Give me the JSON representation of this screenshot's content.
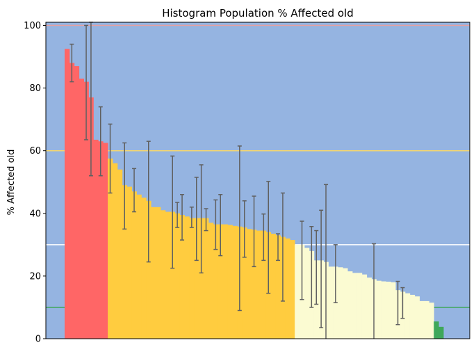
{
  "chart_data": {
    "type": "bar",
    "title": "Histogram Population % Affected old",
    "xlabel": "",
    "ylabel": "% Affected old",
    "ylim": [
      0,
      101
    ],
    "yticks": [
      "0",
      "20",
      "40",
      "60",
      "80",
      "100"
    ],
    "grid": false,
    "background_color": "#95b4e1",
    "thresholds": [
      {
        "value": 100,
        "color": "#e8a0a0"
      },
      {
        "value": 60,
        "color": "#f5d76e"
      },
      {
        "value": 30,
        "color": "#ffffff"
      },
      {
        "value": 10,
        "color": "#3fa75a"
      }
    ],
    "bins": [
      {
        "color": "#ff6666",
        "values": [
          92.5,
          88,
          87,
          83,
          82,
          77,
          63.5,
          63,
          62.5
        ]
      },
      {
        "color": "#ffcc3f",
        "values": [
          57.5,
          56,
          54,
          49,
          48.5,
          47,
          46,
          45,
          44,
          42,
          42,
          41,
          40.5,
          40.5,
          40,
          39.5,
          39,
          38.5,
          38.5,
          38.5,
          38.5,
          37,
          36.5,
          36.5,
          36.5,
          36.3,
          36,
          35.8,
          35.5,
          35,
          34.8,
          34.5,
          34.5,
          34,
          33.5,
          33,
          32.5,
          32,
          31.5
        ]
      },
      {
        "color": "#fbfbd2",
        "values": [
          30,
          30,
          29,
          28,
          25,
          25,
          24.5,
          23,
          23,
          22.8,
          22.5,
          21.5,
          21,
          21,
          20.5,
          19.5,
          19,
          18.5,
          18.3,
          18.2,
          18,
          15.5,
          15,
          14.5,
          14,
          13.5,
          12,
          12,
          11.5
        ]
      },
      {
        "color": "#3fa75a",
        "values": [
          5.5,
          3.8
        ]
      }
    ],
    "error_bars": [
      {
        "index": 1,
        "low": 82,
        "high": 94
      },
      {
        "index": 4,
        "low": 63.5,
        "high": 100
      },
      {
        "index": 5,
        "low": 52,
        "high": 101
      },
      {
        "index": 7,
        "low": 52,
        "high": 74
      },
      {
        "index": 9,
        "low": 46.5,
        "high": 68.5
      },
      {
        "index": 12,
        "low": 35,
        "high": 62.5
      },
      {
        "index": 14,
        "low": 40.5,
        "high": 54.3
      },
      {
        "index": 17,
        "low": 24.5,
        "high": 63
      },
      {
        "index": 22,
        "low": 22.5,
        "high": 58.3
      },
      {
        "index": 23,
        "low": 35.5,
        "high": 43.5
      },
      {
        "index": 24,
        "low": 31.5,
        "high": 46
      },
      {
        "index": 26,
        "low": 35.5,
        "high": 42
      },
      {
        "index": 27,
        "low": 25,
        "high": 51.5
      },
      {
        "index": 28,
        "low": 21,
        "high": 55.5
      },
      {
        "index": 29,
        "low": 34.5,
        "high": 41.5
      },
      {
        "index": 31,
        "low": 28.5,
        "high": 44.3
      },
      {
        "index": 32,
        "low": 26.5,
        "high": 46
      },
      {
        "index": 36,
        "low": 9,
        "high": 61.5
      },
      {
        "index": 37,
        "low": 26,
        "high": 44
      },
      {
        "index": 39,
        "low": 23,
        "high": 45.5
      },
      {
        "index": 41,
        "low": 25,
        "high": 39.8
      },
      {
        "index": 42,
        "low": 14.5,
        "high": 50.2
      },
      {
        "index": 44,
        "low": 25,
        "high": 33.5
      },
      {
        "index": 45,
        "low": 12,
        "high": 46.5
      },
      {
        "index": 49,
        "low": 12.5,
        "high": 37.5
      },
      {
        "index": 51,
        "low": 10,
        "high": 35.8
      },
      {
        "index": 52,
        "low": 11,
        "high": 34.5
      },
      {
        "index": 53,
        "low": 3.5,
        "high": 41
      },
      {
        "index": 54,
        "low": 0,
        "high": 49.2
      },
      {
        "index": 56,
        "low": 11.5,
        "high": 30
      },
      {
        "index": 64,
        "low": 0,
        "high": 30.3
      },
      {
        "index": 69,
        "low": 4.5,
        "high": 18.3
      },
      {
        "index": 70,
        "low": 6.5,
        "high": 16.3
      }
    ]
  }
}
